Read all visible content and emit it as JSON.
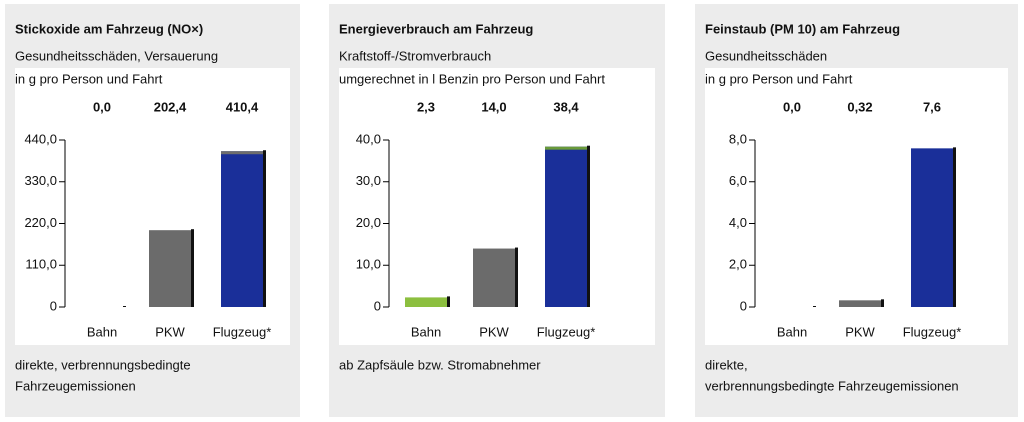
{
  "chart_data": [
    {
      "type": "bar",
      "title": "Stickoxide am Fahrzeug (NO×)",
      "subtitle": "Gesundheitsschäden, Versauerung",
      "unit": "in g pro Person und Fahrt",
      "categories": [
        "Bahn",
        "PKW",
        "Flugzeug*"
      ],
      "values": [
        0,
        202.4,
        410.4
      ],
      "value_labels": [
        "0,0",
        "202,4",
        "410,4"
      ],
      "colors": [
        "#6b6b6b",
        "#6b6b6b",
        "#1a2f99"
      ],
      "cap_colors": [
        null,
        null,
        "#6d6d6d"
      ],
      "ylim": [
        0,
        440
      ],
      "yticks": [
        {
          "value": 0,
          "label": "0"
        },
        {
          "value": 110,
          "label": "110,0"
        },
        {
          "value": 220,
          "label": "220,0"
        },
        {
          "value": 330,
          "label": "330,0"
        },
        {
          "value": 440,
          "label": "440,0"
        }
      ],
      "footnote": [
        "direkte, verbrennungsbedingte",
        "Fahrzeugemissionen"
      ]
    },
    {
      "type": "bar",
      "title": "Energieverbrauch am Fahrzeug",
      "subtitle": "Kraftstoff-/Stromverbrauch",
      "unit": "umgerechnet in l Benzin pro Person und Fahrt",
      "categories": [
        "Bahn",
        "PKW",
        "Flugzeug*"
      ],
      "values": [
        2.3,
        14.0,
        38.4
      ],
      "value_labels": [
        "2,3",
        "14,0",
        "38,4"
      ],
      "colors": [
        "#8cbf3f",
        "#6b6b6b",
        "#1a2f99"
      ],
      "cap_colors": [
        null,
        null,
        "#6a9a3a"
      ],
      "ylim": [
        0,
        40
      ],
      "yticks": [
        {
          "value": 0,
          "label": "0"
        },
        {
          "value": 10,
          "label": "10,0"
        },
        {
          "value": 20,
          "label": "20,0"
        },
        {
          "value": 30,
          "label": "30,0"
        },
        {
          "value": 40,
          "label": "40,0"
        }
      ],
      "footnote": [
        "ab Zapfsäule bzw. Stromabnehmer"
      ]
    },
    {
      "type": "bar",
      "title": "Feinstaub (PM 10) am Fahrzeug",
      "subtitle": "Gesundheitsschäden",
      "unit": "in g pro Person und Fahrt",
      "categories": [
        "Bahn",
        "PKW",
        "Flugzeug*"
      ],
      "values": [
        0,
        0.32,
        7.6
      ],
      "value_labels": [
        "0,0",
        "0,32",
        "7,6"
      ],
      "colors": [
        "#6b6b6b",
        "#6b6b6b",
        "#1a2f99"
      ],
      "cap_colors": [
        null,
        null,
        null
      ],
      "ylim": [
        0,
        8
      ],
      "yticks": [
        {
          "value": 0,
          "label": "0"
        },
        {
          "value": 2,
          "label": "2,0"
        },
        {
          "value": 4,
          "label": "4,0"
        },
        {
          "value": 6,
          "label": "6,0"
        },
        {
          "value": 8,
          "label": "8,0"
        }
      ],
      "footnote": [
        "direkte,",
        "verbrennungsbedingte Fahrzeugemissionen"
      ]
    }
  ]
}
